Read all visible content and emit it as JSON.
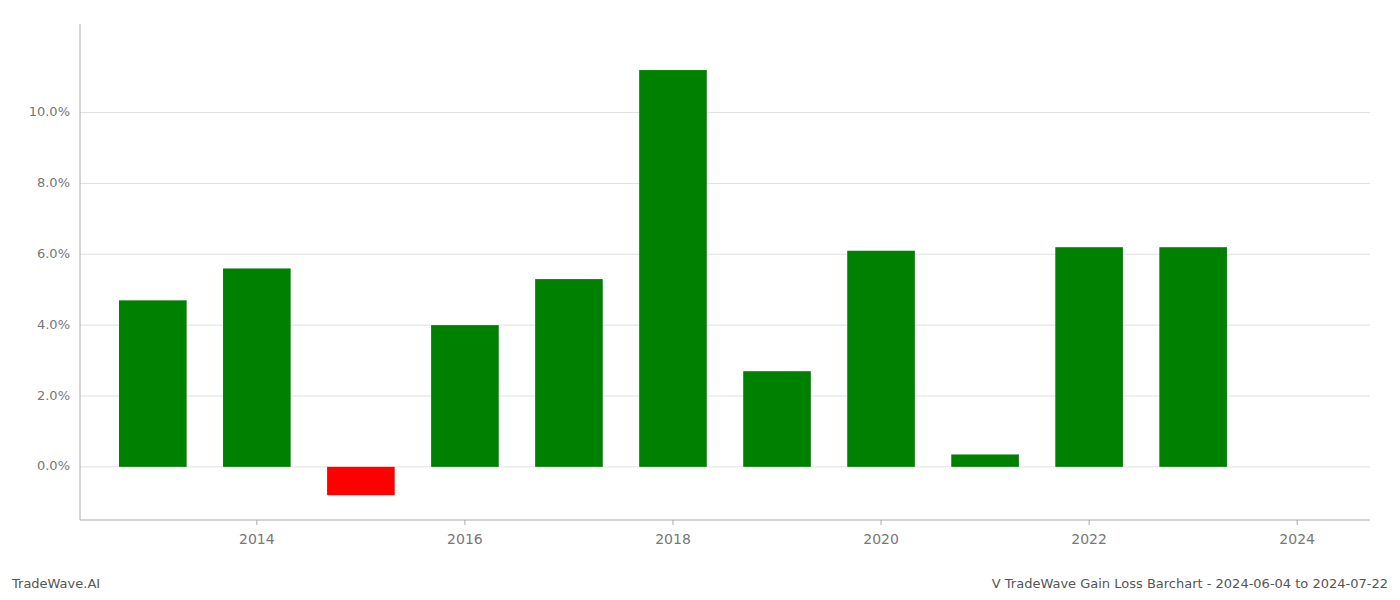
{
  "chart_data": {
    "type": "bar",
    "x": [
      2013,
      2014,
      2015,
      2016,
      2017,
      2018,
      2019,
      2020,
      2021,
      2022,
      2023
    ],
    "values": [
      0.047,
      0.056,
      -0.008,
      0.04,
      0.053,
      0.112,
      0.027,
      0.061,
      0.0035,
      0.062,
      0.062
    ],
    "colors": [
      "#008000",
      "#008000",
      "#ff0000",
      "#008000",
      "#008000",
      "#008000",
      "#008000",
      "#008000",
      "#008000",
      "#008000",
      "#008000"
    ],
    "ylim": [
      -0.015,
      0.125
    ],
    "yticks": [
      {
        "value": 0.0,
        "label": "0.0%"
      },
      {
        "value": 0.02,
        "label": "2.0%"
      },
      {
        "value": 0.04,
        "label": "4.0%"
      },
      {
        "value": 0.06,
        "label": "6.0%"
      },
      {
        "value": 0.08,
        "label": "8.0%"
      },
      {
        "value": 0.1,
        "label": "10.0%"
      }
    ],
    "xlim": [
      2012.3,
      2024.7
    ],
    "xticks": [
      2014,
      2016,
      2018,
      2020,
      2022,
      2024
    ],
    "grid": true,
    "annotations": [
      "TradeWave.AI",
      "V TradeWave Gain Loss Barchart - 2024-06-04 to 2024-07-22"
    ]
  }
}
